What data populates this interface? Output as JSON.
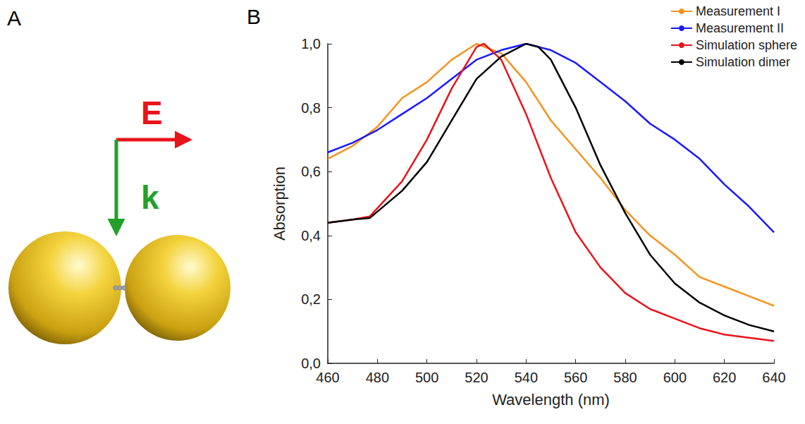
{
  "diagram": {
    "panel": "A",
    "arrows": [
      {
        "label": "E",
        "color": "#e8141b"
      },
      {
        "label": "k",
        "color": "#22a02a"
      }
    ]
  },
  "chart_data": {
    "type": "line",
    "panel": "B",
    "x_label": "Wavelength (nm)",
    "y_label": "Absorption",
    "xlim": [
      460,
      640
    ],
    "xticks": [
      460,
      480,
      500,
      520,
      540,
      560,
      580,
      600,
      620,
      640
    ],
    "ylim": [
      0,
      1
    ],
    "yticks": [
      {
        "value": 0,
        "label": "0,0"
      },
      {
        "value": 0.2,
        "label": "0,2"
      },
      {
        "value": 0.4,
        "label": "0,4"
      },
      {
        "value": 0.6,
        "label": "0,6"
      },
      {
        "value": 0.8,
        "label": "0,8"
      },
      {
        "value": 1,
        "label": "1,0"
      }
    ],
    "legend": "upper right",
    "grid": false,
    "series": [
      {
        "name": "Measurement I",
        "color": "#f7931e",
        "x": [
          460,
          470,
          480,
          490,
          500,
          510,
          520,
          530,
          540,
          550,
          560,
          570,
          580,
          590,
          600,
          610,
          620,
          630,
          640
        ],
        "values": [
          0.64,
          0.68,
          0.74,
          0.83,
          0.88,
          0.95,
          1.0,
          0.97,
          0.88,
          0.76,
          0.67,
          0.58,
          0.48,
          0.4,
          0.34,
          0.27,
          0.24,
          0.21,
          0.18
        ]
      },
      {
        "name": "Measurement II",
        "color": "#1a1aff",
        "x": [
          460,
          470,
          480,
          490,
          500,
          510,
          520,
          530,
          540,
          550,
          560,
          570,
          580,
          590,
          600,
          610,
          620,
          630,
          640
        ],
        "values": [
          0.66,
          0.69,
          0.73,
          0.78,
          0.83,
          0.89,
          0.95,
          0.98,
          1.0,
          0.98,
          0.94,
          0.88,
          0.82,
          0.75,
          0.7,
          0.64,
          0.56,
          0.49,
          0.41
        ]
      },
      {
        "name": "Simulation sphere",
        "color": "#e8141b",
        "x": [
          460,
          470,
          477,
          490,
          500,
          510,
          520,
          523,
          530,
          540,
          550,
          560,
          570,
          580,
          590,
          600,
          610,
          620,
          630,
          640
        ],
        "values": [
          0.44,
          0.45,
          0.46,
          0.57,
          0.7,
          0.86,
          0.99,
          1.0,
          0.95,
          0.78,
          0.58,
          0.41,
          0.3,
          0.22,
          0.17,
          0.14,
          0.11,
          0.09,
          0.08,
          0.07
        ]
      },
      {
        "name": "Simulation dimer",
        "color": "#000000",
        "x": [
          460,
          470,
          477,
          490,
          500,
          510,
          520,
          530,
          540,
          545,
          550,
          560,
          570,
          580,
          590,
          600,
          610,
          620,
          630,
          640
        ],
        "values": [
          0.44,
          0.45,
          0.455,
          0.54,
          0.63,
          0.76,
          0.89,
          0.96,
          1.0,
          0.99,
          0.95,
          0.8,
          0.62,
          0.47,
          0.34,
          0.25,
          0.19,
          0.15,
          0.12,
          0.1
        ]
      }
    ]
  }
}
